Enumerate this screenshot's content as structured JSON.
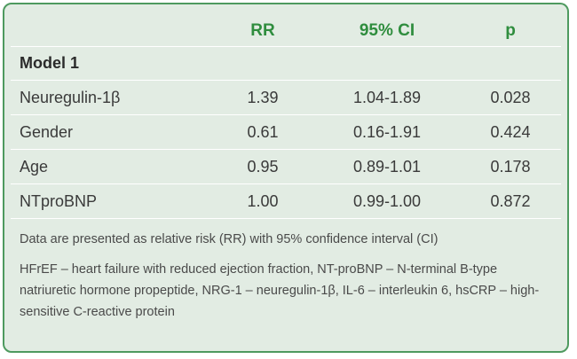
{
  "table": {
    "headers": [
      "",
      "RR",
      "95% CI",
      "p"
    ],
    "section": "Model 1",
    "rows": [
      {
        "label": "Neuregulin-1β",
        "rr": "1.39",
        "ci": "1.04-1.89",
        "p": "0.028"
      },
      {
        "label": "Gender",
        "rr": "0.61",
        "ci": "0.16-1.91",
        "p": "0.424"
      },
      {
        "label": "Age",
        "rr": "0.95",
        "ci": "0.89-1.01",
        "p": "0.178"
      },
      {
        "label": "NTproBNP",
        "rr": "1.00",
        "ci": "0.99-1.00",
        "p": "0.872"
      }
    ]
  },
  "notes": {
    "data_note": "Data are presented as relative risk (RR) with 95% confidence interval (CI)",
    "abbreviations": "HFrEF – heart failure with reduced ejection fraction, NT-proBNP – N-terminal B-type natriuretic hormone propeptide, NRG-1 – neuregulin-1β, IL-6 – interleukin 6, hsCRP – high-sensitive C-reactive protein"
  },
  "colors": {
    "panel_background": "#e2ece3",
    "border": "#4e9a5f",
    "header_text": "#2f8d3e",
    "body_text": "#3a3a3a"
  }
}
